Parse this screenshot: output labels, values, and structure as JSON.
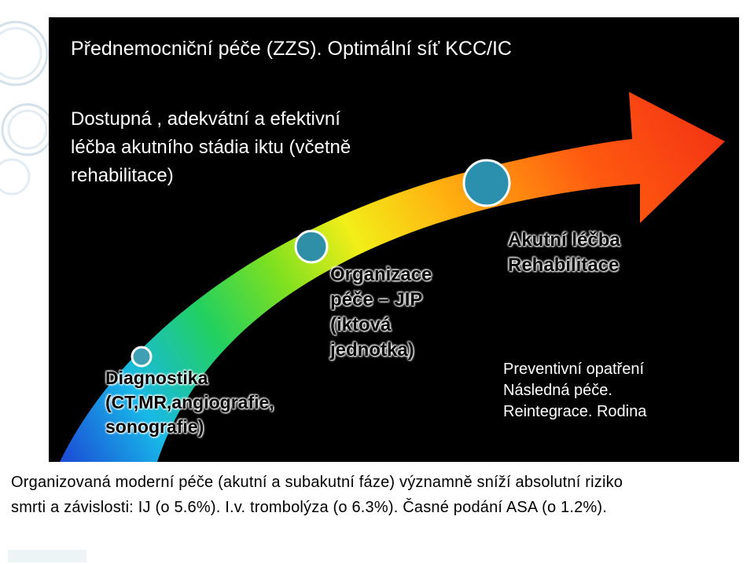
{
  "title": "Přednemocniční péče (ZZS). Optimální síť  KCC/IC",
  "intro": {
    "lines": [
      "Dostupná , adekvátní a efektivní",
      "léčba akutního stádia iktu (včetně",
      "rehabilitace)"
    ]
  },
  "stages": [
    {
      "lines": [
        "Diagnostika",
        "(CT,MR,angiografie,",
        "sonografie)"
      ]
    },
    {
      "lines": [
        "Organizace",
        "péče – JIP",
        "(iktová",
        "jednotka)"
      ]
    },
    {
      "lines": [
        "Akutní léčba",
        "Rehabilitace"
      ]
    }
  ],
  "preventive": {
    "lines": [
      "Preventivní opatření",
      "Následná péče.",
      "Reintegrace. Rodina"
    ]
  },
  "bottom_text": {
    "lines": [
      "Organizovaná moderní péče  (akutní a subakutní fáze) významně sníží absolutní riziko",
      "smrti a závislosti: IJ (o 5.6%). I.v. trombolýza (o 6.3%). Časné podání ASA (o 1.2%)."
    ]
  },
  "colors": {
    "panel": "#000000",
    "circle_small": "#3f9fb5",
    "circle_mid": "#2f8fa6",
    "circle_large": "#2b90ad",
    "decor_rings": "#c9d8e4"
  }
}
